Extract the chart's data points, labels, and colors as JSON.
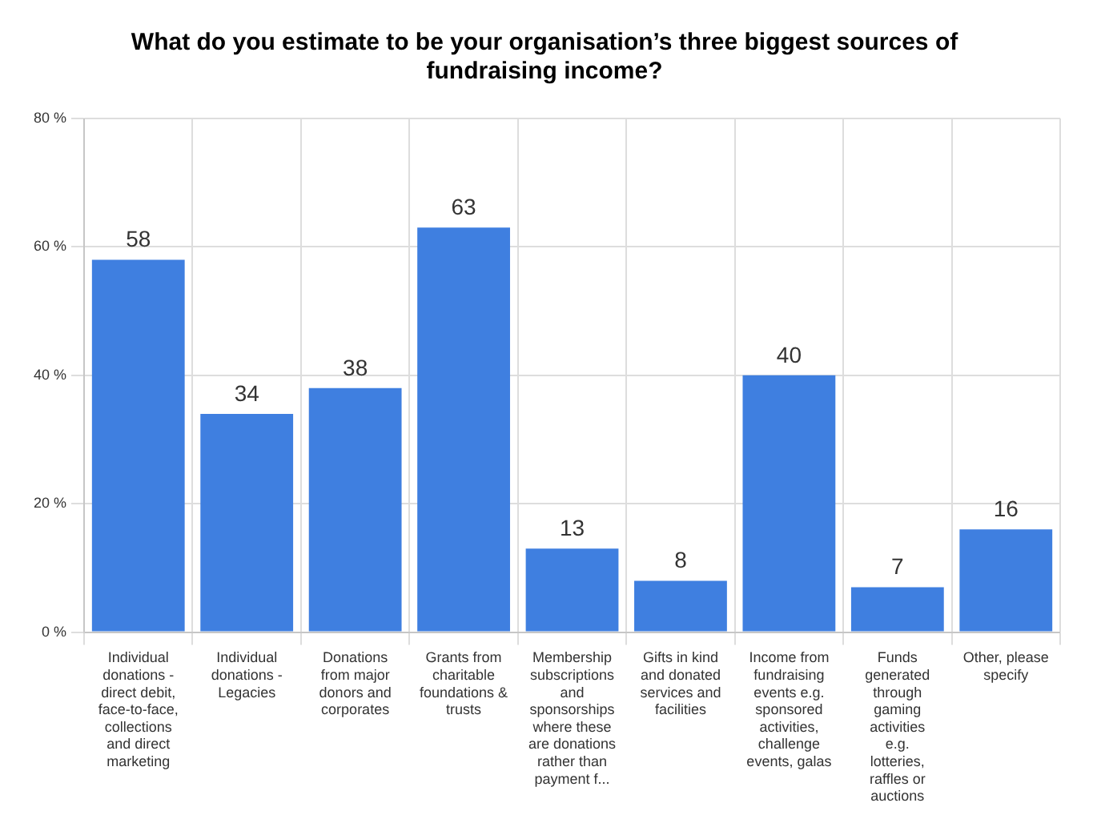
{
  "chart_data": {
    "type": "bar",
    "title": "What do you estimate to be your organisation’s three biggest sources of fundraising income?",
    "categories": [
      "Individual donations - direct debit, face-to-face, collections and direct marketing",
      "Individual donations - Legacies",
      "Donations from major donors and corporates",
      "Grants from charitable foundations & trusts",
      "Membership subscriptions and sponsorships where these are donations rather than payment f...",
      "Gifts in kind and donated services and facilities",
      "Income from fundraising events e.g. sponsored activities, challenge events, galas",
      "Funds generated through gaming activities e.g. lotteries, raffles or auctions",
      "Other, please specify"
    ],
    "values": [
      58,
      34,
      38,
      63,
      13,
      8,
      40,
      7,
      16
    ],
    "color": "#3f7fe0",
    "ylim": [
      0,
      80
    ],
    "yticks": [
      {
        "value": 0,
        "label": "0 %"
      },
      {
        "value": 20,
        "label": "20 %"
      },
      {
        "value": 40,
        "label": "40 %"
      },
      {
        "value": 60,
        "label": "60 %"
      },
      {
        "value": 80,
        "label": "80 %"
      }
    ],
    "grid": true,
    "data_labels": true
  }
}
